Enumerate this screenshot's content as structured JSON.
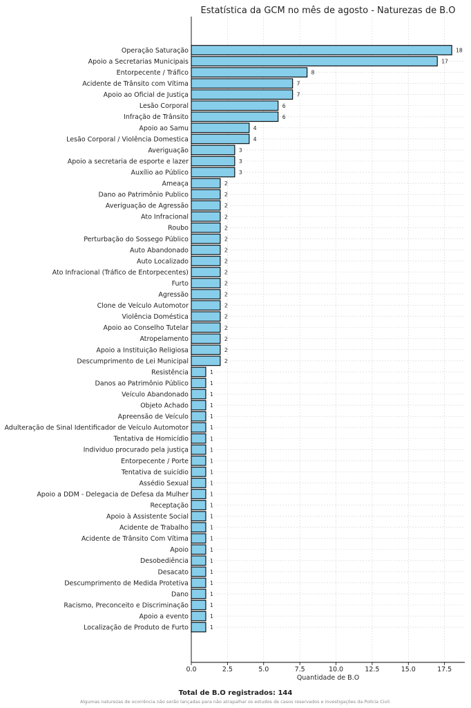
{
  "chart_data": {
    "type": "bar",
    "orientation": "horizontal",
    "title": "Estatística da GCM no mês de agosto - Naturezas de B.O",
    "xlabel": "Quantidade de B.O",
    "ylabel": "",
    "xlim": [
      0,
      18.9
    ],
    "xticks": [
      "0.0",
      "2.5",
      "5.0",
      "7.5",
      "10.0",
      "12.5",
      "15.0",
      "17.5"
    ],
    "grid": true,
    "bar_color": "#87CEEB",
    "edge_color": "#000000",
    "categories": [
      "Operação Saturação",
      "Apoio a Secretarias Municipais",
      "Entorpecente / Tráfico",
      "Acidente de Trânsito com Vítima",
      "Apoio ao Oficial de Justiça",
      "Lesão Corporal",
      "Infração de Trânsito",
      "Apoio ao Samu",
      "Lesão Corporal / Violência Domestica",
      "Averiguação",
      "Apoio a secretaria de esporte e lazer",
      "Auxílio ao Público",
      "Ameaça",
      "Dano ao Patrimônio Publico",
      "Averiguação de Agressão",
      "Ato Infracional",
      "Roubo",
      "Perturbação do Sossego Público",
      "Auto Abandonado",
      "Auto Localizado",
      "Ato Infracional (Tráfico de Entorpecentes)",
      "Furto",
      "Agressão",
      "Clone de Veículo Automotor",
      "Violência Doméstica",
      "Apoio ao Conselho Tutelar",
      "Atropelamento",
      "Apoio a Instituição Religiosa",
      "Descumprimento de Lei Municipal",
      "Resistência",
      "Danos ao Patrimônio Público",
      "Veículo Abandonado",
      "Objeto Achado",
      "Apreensão de Veículo",
      "Adulteração de Sinal Identificador de Veículo Automotor",
      "Tentativa de Homicídio",
      "Individuo procurado pela justiça",
      "Entorpecente / Porte",
      "Tentativa de suicídio",
      "Assédio Sexual",
      "Apoio a DDM - Delegacia de Defesa da Mulher",
      "Receptação",
      "Apoio à Assistente Social",
      "Acidente de Trabalho",
      "Acidente de Trânsito Com Vítima",
      "Apoio",
      "Desobediência",
      "Desacato",
      "Descumprimento de Medida Protetiva",
      "Dano",
      "Racismo, Preconceito e Discriminação",
      "Apoio a evento",
      "Localização de Produto de Furto"
    ],
    "values": [
      18,
      17,
      8,
      7,
      7,
      6,
      6,
      4,
      4,
      3,
      3,
      3,
      2,
      2,
      2,
      2,
      2,
      2,
      2,
      2,
      2,
      2,
      2,
      2,
      2,
      2,
      2,
      2,
      2,
      1,
      1,
      1,
      1,
      1,
      1,
      1,
      1,
      1,
      1,
      1,
      1,
      1,
      1,
      1,
      1,
      1,
      1,
      1,
      1,
      1,
      1,
      1,
      1
    ]
  },
  "footer": {
    "total": "Total de B.O registrados: 144",
    "note": "Algumas naturezas de ocorrência não serão lançadas para não atrapalhar os estudos de casos reservados e investigações da Polícia Civil."
  }
}
